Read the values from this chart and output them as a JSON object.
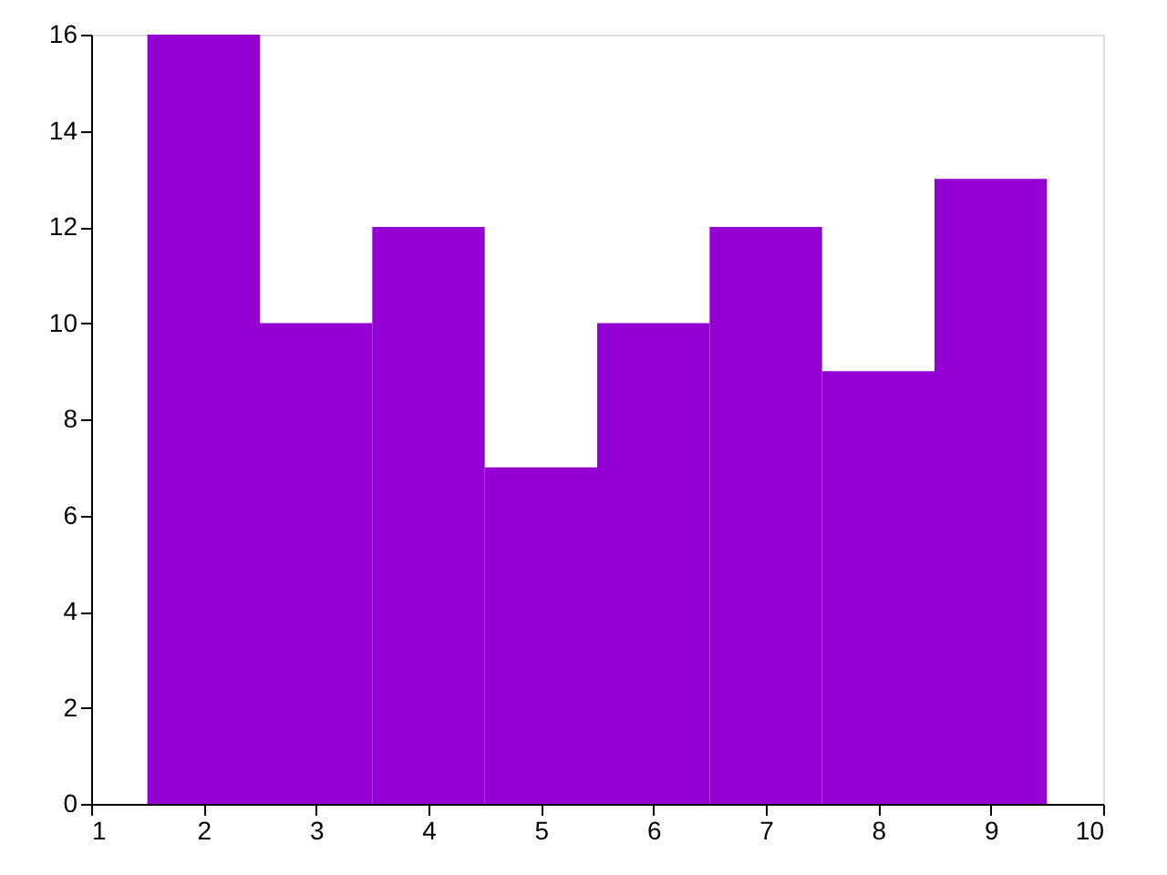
{
  "chart_data": {
    "type": "histogram",
    "bins": [
      1.5,
      2.5,
      3.5,
      4.5,
      5.5,
      6.5,
      7.5,
      8.5,
      9.5
    ],
    "values": [
      16,
      10,
      12,
      7,
      10,
      12,
      9,
      13
    ],
    "color": "#9400d3",
    "xlim": [
      1,
      10
    ],
    "xticks": [
      1,
      2,
      3,
      4,
      5,
      6,
      7,
      8,
      9,
      10
    ],
    "ylim": [
      0,
      16
    ],
    "yticks": [
      0,
      2,
      4,
      6,
      8,
      10,
      12,
      14,
      16
    ],
    "grid": false
  }
}
